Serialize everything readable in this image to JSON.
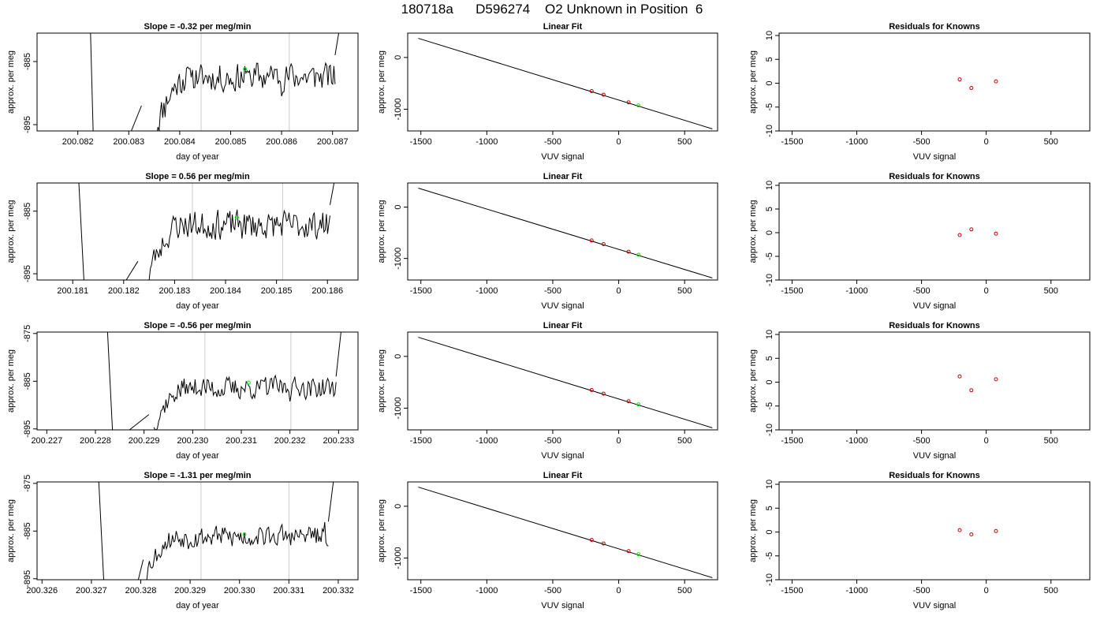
{
  "page": {
    "title": "180718a      D596274    O2 Unknown in Position  6"
  },
  "colors": {
    "trace": "#000000",
    "gridline": "#d3d3d3",
    "known_point": "#cc0000",
    "unknown_point": "#00ee00",
    "fit_line": "#000000"
  },
  "chart_data": [
    {
      "row": 1,
      "panel": "time_series",
      "type": "line",
      "title": "Slope =  -0.32  per meg/min",
      "xlabel": "day of year",
      "ylabel": "approx. per meg",
      "xlim": [
        200.0812,
        200.0875
      ],
      "ylim": [
        -896,
        -880.5
      ],
      "xticks": [
        200.082,
        200.083,
        200.084,
        200.085,
        200.086,
        200.087
      ],
      "xtick_labels": [
        "200.082",
        "200.083",
        "200.084",
        "200.085",
        "200.086",
        "200.087"
      ],
      "yticks": [
        -885,
        -895
      ],
      "ytick_labels": [
        "-885",
        "-895"
      ],
      "vlines": [
        200.08442,
        200.08615
      ],
      "trace": {
        "x_start": 200.08355,
        "x_end": 200.08705,
        "base": -887.5,
        "rise_start": 200.0833,
        "seed": 11
      },
      "spike_left": [
        [
          200.08225,
          -880.5
        ],
        [
          200.0823,
          -896
        ]
      ],
      "spike_left2": [
        [
          200.08305,
          -896
        ],
        [
          200.08325,
          -892
        ]
      ],
      "spike_right": [
        [
          200.08705,
          -884
        ],
        [
          200.08712,
          -880.5
        ]
      ],
      "marker": {
        "x": 200.08528,
        "y": -886.2
      }
    },
    {
      "row": 1,
      "panel": "linear_fit",
      "type": "scatter",
      "title": "Linear Fit",
      "xlabel": "VUV signal",
      "ylabel": "approx. per meg",
      "xlim": [
        -1600,
        750
      ],
      "ylim": [
        -1420,
        470
      ],
      "xticks": [
        -1500,
        -1000,
        -500,
        0,
        500
      ],
      "xtick_labels": [
        "-1500",
        "-1000",
        "-500",
        "0",
        "500"
      ],
      "yticks": [
        0,
        -1000
      ],
      "ytick_labels": [
        "0",
        "-1000"
      ],
      "line": [
        [
          -1520,
          370
        ],
        [
          710,
          -1380
        ]
      ],
      "knowns": [
        [
          -205,
          -650
        ],
        [
          -115,
          -720
        ],
        [
          75,
          -868
        ]
      ],
      "unknown": [
        150,
        -928
      ]
    },
    {
      "row": 1,
      "panel": "residuals",
      "type": "scatter",
      "title": "Residuals for Knowns",
      "xlabel": "VUV signal",
      "ylabel": "approx. per meg",
      "xlim": [
        -1600,
        800
      ],
      "ylim": [
        -10,
        10.5
      ],
      "xticks": [
        -1500,
        -1000,
        -500,
        0,
        500
      ],
      "xtick_labels": [
        "-1500",
        "-1000",
        "-500",
        "0",
        "500"
      ],
      "yticks": [
        10,
        5,
        0,
        -5,
        -10
      ],
      "ytick_labels": [
        "10",
        "5",
        "0",
        "-5",
        "-10"
      ],
      "points": [
        [
          -205,
          0.8
        ],
        [
          -115,
          -1.0
        ],
        [
          75,
          0.4
        ]
      ]
    },
    {
      "row": 2,
      "panel": "time_series",
      "type": "line",
      "title": "Slope =  0.56  per meg/min",
      "xlabel": "day of year",
      "ylabel": "approx. per meg",
      "xlim": [
        200.1803,
        200.1866
      ],
      "ylim": [
        -896,
        -880.5
      ],
      "xticks": [
        200.181,
        200.182,
        200.183,
        200.184,
        200.185,
        200.186
      ],
      "xtick_labels": [
        "200.181",
        "200.182",
        "200.183",
        "200.184",
        "200.185",
        "200.186"
      ],
      "yticks": [
        -885,
        -895
      ],
      "ytick_labels": [
        "-885",
        "-895"
      ],
      "vlines": [
        200.18335,
        200.18512
      ],
      "trace": {
        "x_start": 200.1825,
        "x_end": 200.18605,
        "base": -887.2,
        "rise_start": 200.1823,
        "seed": 23
      },
      "spike_left": [
        [
          200.18112,
          -880.5
        ],
        [
          200.18122,
          -896
        ]
      ],
      "spike_left2": [
        [
          200.18205,
          -896
        ],
        [
          200.18228,
          -893
        ]
      ],
      "spike_right": [
        [
          200.18605,
          -884
        ],
        [
          200.18613,
          -880.5
        ]
      ],
      "marker": {
        "x": 200.18422,
        "y": -886.0
      }
    },
    {
      "row": 2,
      "panel": "linear_fit",
      "type": "scatter",
      "title": "Linear Fit",
      "xlabel": "VUV signal",
      "ylabel": "approx. per meg",
      "xlim": [
        -1600,
        750
      ],
      "ylim": [
        -1420,
        470
      ],
      "xticks": [
        -1500,
        -1000,
        -500,
        0,
        500
      ],
      "xtick_labels": [
        "-1500",
        "-1000",
        "-500",
        "0",
        "500"
      ],
      "yticks": [
        0,
        -1000
      ],
      "ytick_labels": [
        "0",
        "-1000"
      ],
      "line": [
        [
          -1520,
          370
        ],
        [
          710,
          -1380
        ]
      ],
      "knowns": [
        [
          -205,
          -650
        ],
        [
          -115,
          -720
        ],
        [
          75,
          -868
        ]
      ],
      "unknown": [
        150,
        -928
      ]
    },
    {
      "row": 2,
      "panel": "residuals",
      "type": "scatter",
      "title": "Residuals for Knowns",
      "xlabel": "VUV signal",
      "ylabel": "approx. per meg",
      "xlim": [
        -1600,
        800
      ],
      "ylim": [
        -10,
        10.5
      ],
      "xticks": [
        -1500,
        -1000,
        -500,
        0,
        500
      ],
      "xtick_labels": [
        "-1500",
        "-1000",
        "-500",
        "0",
        "500"
      ],
      "yticks": [
        10,
        5,
        0,
        -5,
        -10
      ],
      "ytick_labels": [
        "10",
        "5",
        "0",
        "-5",
        "-10"
      ],
      "points": [
        [
          -205,
          -0.5
        ],
        [
          -115,
          0.7
        ],
        [
          75,
          -0.2
        ]
      ]
    },
    {
      "row": 3,
      "panel": "time_series",
      "type": "line",
      "title": "Slope =  -0.56  per meg/min",
      "xlabel": "day of year",
      "ylabel": "approx. per meg",
      "xlim": [
        200.2268,
        200.2334
      ],
      "ylim": [
        -895.2,
        -874.7
      ],
      "xticks": [
        200.227,
        200.228,
        200.229,
        200.23,
        200.231,
        200.232,
        200.233
      ],
      "xtick_labels": [
        "200.227",
        "200.228",
        "200.229",
        "200.230",
        "200.231",
        "200.232",
        "200.233"
      ],
      "yticks": [
        -875,
        -885,
        -895
      ],
      "ytick_labels": [
        "-875",
        "-885",
        "-895"
      ],
      "vlines": [
        200.23025,
        200.23202
      ],
      "trace": {
        "x_start": 200.2292,
        "x_end": 200.23295,
        "base": -886.4,
        "rise_start": 200.2289,
        "seed": 37
      },
      "spike_left": [
        [
          200.22825,
          -874.7
        ],
        [
          200.22835,
          -895.2
        ]
      ],
      "spike_left2": [
        [
          200.2287,
          -895.2
        ],
        [
          200.2291,
          -892
        ]
      ],
      "spike_right": [
        [
          200.23295,
          -884
        ],
        [
          200.23305,
          -874.7
        ]
      ],
      "marker": {
        "x": 200.23115,
        "y": -885.3
      }
    },
    {
      "row": 3,
      "panel": "linear_fit",
      "type": "scatter",
      "title": "Linear Fit",
      "xlabel": "VUV signal",
      "ylabel": "approx. per meg",
      "xlim": [
        -1600,
        750
      ],
      "ylim": [
        -1420,
        470
      ],
      "xticks": [
        -1500,
        -1000,
        -500,
        0,
        500
      ],
      "xtick_labels": [
        "-1500",
        "-1000",
        "-500",
        "0",
        "500"
      ],
      "yticks": [
        0,
        -1000
      ],
      "ytick_labels": [
        "0",
        "-1000"
      ],
      "line": [
        [
          -1520,
          370
        ],
        [
          710,
          -1380
        ]
      ],
      "knowns": [
        [
          -205,
          -650
        ],
        [
          -115,
          -720
        ],
        [
          75,
          -868
        ]
      ],
      "unknown": [
        150,
        -928
      ]
    },
    {
      "row": 3,
      "panel": "residuals",
      "type": "scatter",
      "title": "Residuals for Knowns",
      "xlabel": "VUV signal",
      "ylabel": "approx. per meg",
      "xlim": [
        -1600,
        800
      ],
      "ylim": [
        -10,
        10.5
      ],
      "xticks": [
        -1500,
        -1000,
        -500,
        0,
        500
      ],
      "xtick_labels": [
        "-1500",
        "-1000",
        "-500",
        "0",
        "500"
      ],
      "yticks": [
        10,
        5,
        0,
        -5,
        -10
      ],
      "ytick_labels": [
        "10",
        "5",
        "0",
        "-5",
        "-10"
      ],
      "points": [
        [
          -205,
          1.2
        ],
        [
          -115,
          -1.7
        ],
        [
          75,
          0.6
        ]
      ]
    },
    {
      "row": 4,
      "panel": "time_series",
      "type": "line",
      "title": "Slope =  -1.31  per meg/min",
      "xlabel": "day of year",
      "ylabel": "approx. per meg",
      "xlim": [
        200.3259,
        200.3324
      ],
      "ylim": [
        -895.2,
        -874.7
      ],
      "xticks": [
        200.326,
        200.327,
        200.328,
        200.329,
        200.33,
        200.331,
        200.332
      ],
      "xtick_labels": [
        "200.326",
        "200.327",
        "200.328",
        "200.329",
        "200.330",
        "200.331",
        "200.332"
      ],
      "yticks": [
        -875,
        -885,
        -895
      ],
      "ytick_labels": [
        "-875",
        "-885",
        "-895"
      ],
      "vlines": [
        200.32922,
        200.331
      ],
      "trace": {
        "x_start": 200.3281,
        "x_end": 200.3318,
        "base": -886.2,
        "rise_start": 200.328,
        "seed": 53
      },
      "spike_left": [
        [
          200.32715,
          -874.7
        ],
        [
          200.32725,
          -895.2
        ]
      ],
      "spike_left2": [
        [
          200.32795,
          -895.2
        ],
        [
          200.32805,
          -891
        ]
      ],
      "spike_right": [
        [
          200.3318,
          -883
        ],
        [
          200.3319,
          -874.7
        ]
      ],
      "marker": {
        "x": 200.3301,
        "y": -885.7
      }
    },
    {
      "row": 4,
      "panel": "linear_fit",
      "type": "scatter",
      "title": "Linear Fit",
      "xlabel": "VUV signal",
      "ylabel": "approx. per meg",
      "xlim": [
        -1600,
        750
      ],
      "ylim": [
        -1420,
        470
      ],
      "xticks": [
        -1500,
        -1000,
        -500,
        0,
        500
      ],
      "xtick_labels": [
        "-1500",
        "-1000",
        "-500",
        "0",
        "500"
      ],
      "yticks": [
        0,
        -1000
      ],
      "ytick_labels": [
        "0",
        "-1000"
      ],
      "line": [
        [
          -1520,
          370
        ],
        [
          710,
          -1380
        ]
      ],
      "knowns": [
        [
          -205,
          -650
        ],
        [
          -115,
          -720
        ],
        [
          75,
          -868
        ]
      ],
      "unknown": [
        150,
        -928
      ]
    },
    {
      "row": 4,
      "panel": "residuals",
      "type": "scatter",
      "title": "Residuals for Knowns",
      "xlabel": "VUV signal",
      "ylabel": "approx. per meg",
      "xlim": [
        -1600,
        800
      ],
      "ylim": [
        -10,
        10.5
      ],
      "xticks": [
        -1500,
        -1000,
        -500,
        0,
        500
      ],
      "xtick_labels": [
        "-1500",
        "-1000",
        "-500",
        "0",
        "500"
      ],
      "yticks": [
        10,
        5,
        0,
        -5,
        -10
      ],
      "ytick_labels": [
        "10",
        "5",
        "0",
        "-5",
        "-10"
      ],
      "points": [
        [
          -205,
          0.4
        ],
        [
          -115,
          -0.5
        ],
        [
          75,
          0.2
        ]
      ]
    }
  ]
}
